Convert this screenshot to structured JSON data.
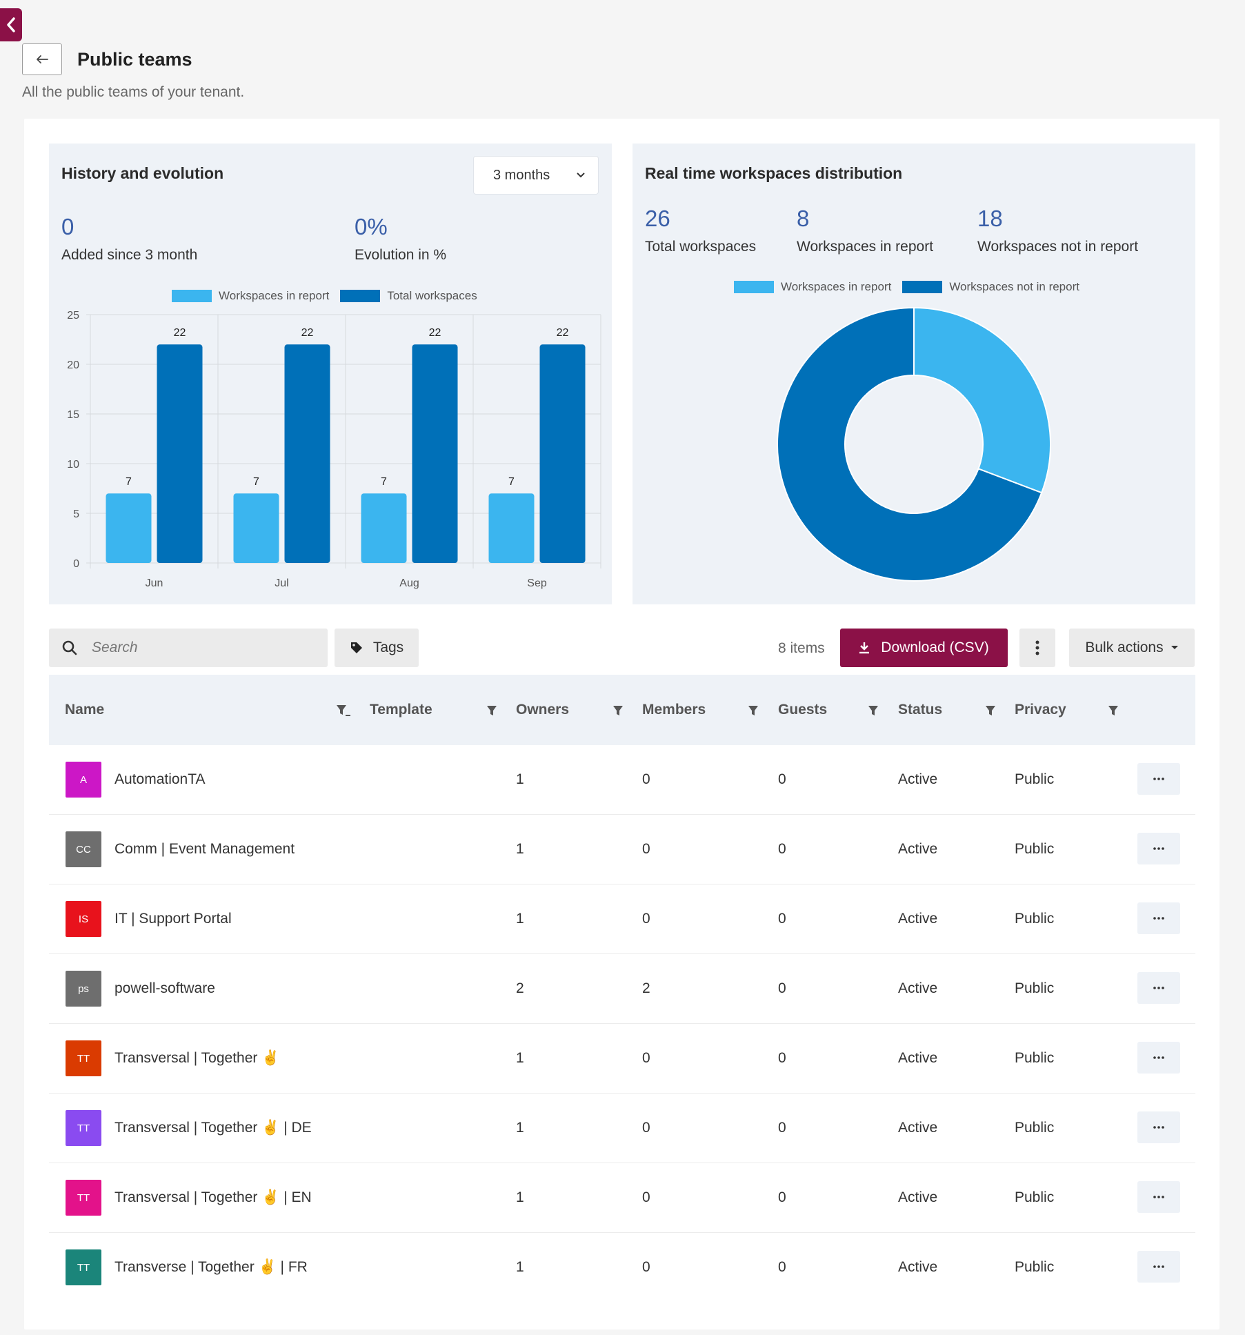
{
  "header": {
    "title": "Public teams",
    "subtitle": "All the public teams of your tenant."
  },
  "history": {
    "title": "History and evolution",
    "range_selected": "3 months",
    "stats": [
      {
        "value": "0",
        "label": "Added since 3 month"
      },
      {
        "value": "0%",
        "label": "Evolution in %"
      }
    ]
  },
  "distribution": {
    "title": "Real time workspaces distribution",
    "stats": [
      {
        "value": "26",
        "label": "Total workspaces"
      },
      {
        "value": "8",
        "label": "Workspaces in report"
      },
      {
        "value": "18",
        "label": "Workspaces not in report"
      }
    ]
  },
  "chart_data": [
    {
      "type": "bar",
      "title": "",
      "categories": [
        "Jun",
        "Jul",
        "Aug",
        "Sep"
      ],
      "series": [
        {
          "name": "Workspaces in report",
          "values": [
            7,
            7,
            7,
            7
          ],
          "color": "#3bb5ef"
        },
        {
          "name": "Total workspaces",
          "values": [
            22,
            22,
            22,
            22
          ],
          "color": "#0070b8"
        }
      ],
      "ylim": [
        0,
        25
      ],
      "yticks": [
        0,
        5,
        10,
        15,
        20,
        25
      ],
      "grid": true,
      "legend": "top-center"
    },
    {
      "type": "pie",
      "donut": true,
      "labels": [
        "Workspaces in report",
        "Workspaces not in report"
      ],
      "values": [
        8,
        18
      ],
      "colors": [
        "#3bb5ef",
        "#0070b8"
      ],
      "legend": "top-center"
    }
  ],
  "toolbar": {
    "search_placeholder": "Search",
    "tags_label": "Tags",
    "items_count": "8 items",
    "download_label": "Download (CSV)",
    "bulk_label": "Bulk actions"
  },
  "table": {
    "columns": [
      "Name",
      "Template",
      "Owners",
      "Members",
      "Guests",
      "Status",
      "Privacy"
    ],
    "rows": [
      {
        "initials": "A",
        "color": "#cc17c6",
        "name": "AutomationTA",
        "template": "",
        "owners": "1",
        "members": "0",
        "guests": "0",
        "status": "Active",
        "privacy": "Public"
      },
      {
        "initials": "CC",
        "color": "#6e6e6e",
        "name": "Comm | Event Management",
        "template": "",
        "owners": "1",
        "members": "0",
        "guests": "0",
        "status": "Active",
        "privacy": "Public"
      },
      {
        "initials": "IS",
        "color": "#e8121c",
        "name": "IT | Support Portal",
        "template": "",
        "owners": "1",
        "members": "0",
        "guests": "0",
        "status": "Active",
        "privacy": "Public"
      },
      {
        "initials": "ps",
        "color": "#6e6e6e",
        "name": "powell-software",
        "template": "",
        "owners": "2",
        "members": "2",
        "guests": "0",
        "status": "Active",
        "privacy": "Public"
      },
      {
        "initials": "TT",
        "color": "#da3b01",
        "name": "Transversal | Together ✌️",
        "template": "",
        "owners": "1",
        "members": "0",
        "guests": "0",
        "status": "Active",
        "privacy": "Public"
      },
      {
        "initials": "TT",
        "color": "#8a4bf0",
        "name": "Transversal | Together ✌️ | DE",
        "template": "",
        "owners": "1",
        "members": "0",
        "guests": "0",
        "status": "Active",
        "privacy": "Public"
      },
      {
        "initials": "TT",
        "color": "#e3128a",
        "name": "Transversal | Together ✌️ | EN",
        "template": "",
        "owners": "1",
        "members": "0",
        "guests": "0",
        "status": "Active",
        "privacy": "Public"
      },
      {
        "initials": "TT",
        "color": "#1b857a",
        "name": "Transverse | Together ✌️ | FR",
        "template": "",
        "owners": "1",
        "members": "0",
        "guests": "0",
        "status": "Active",
        "privacy": "Public"
      }
    ]
  }
}
